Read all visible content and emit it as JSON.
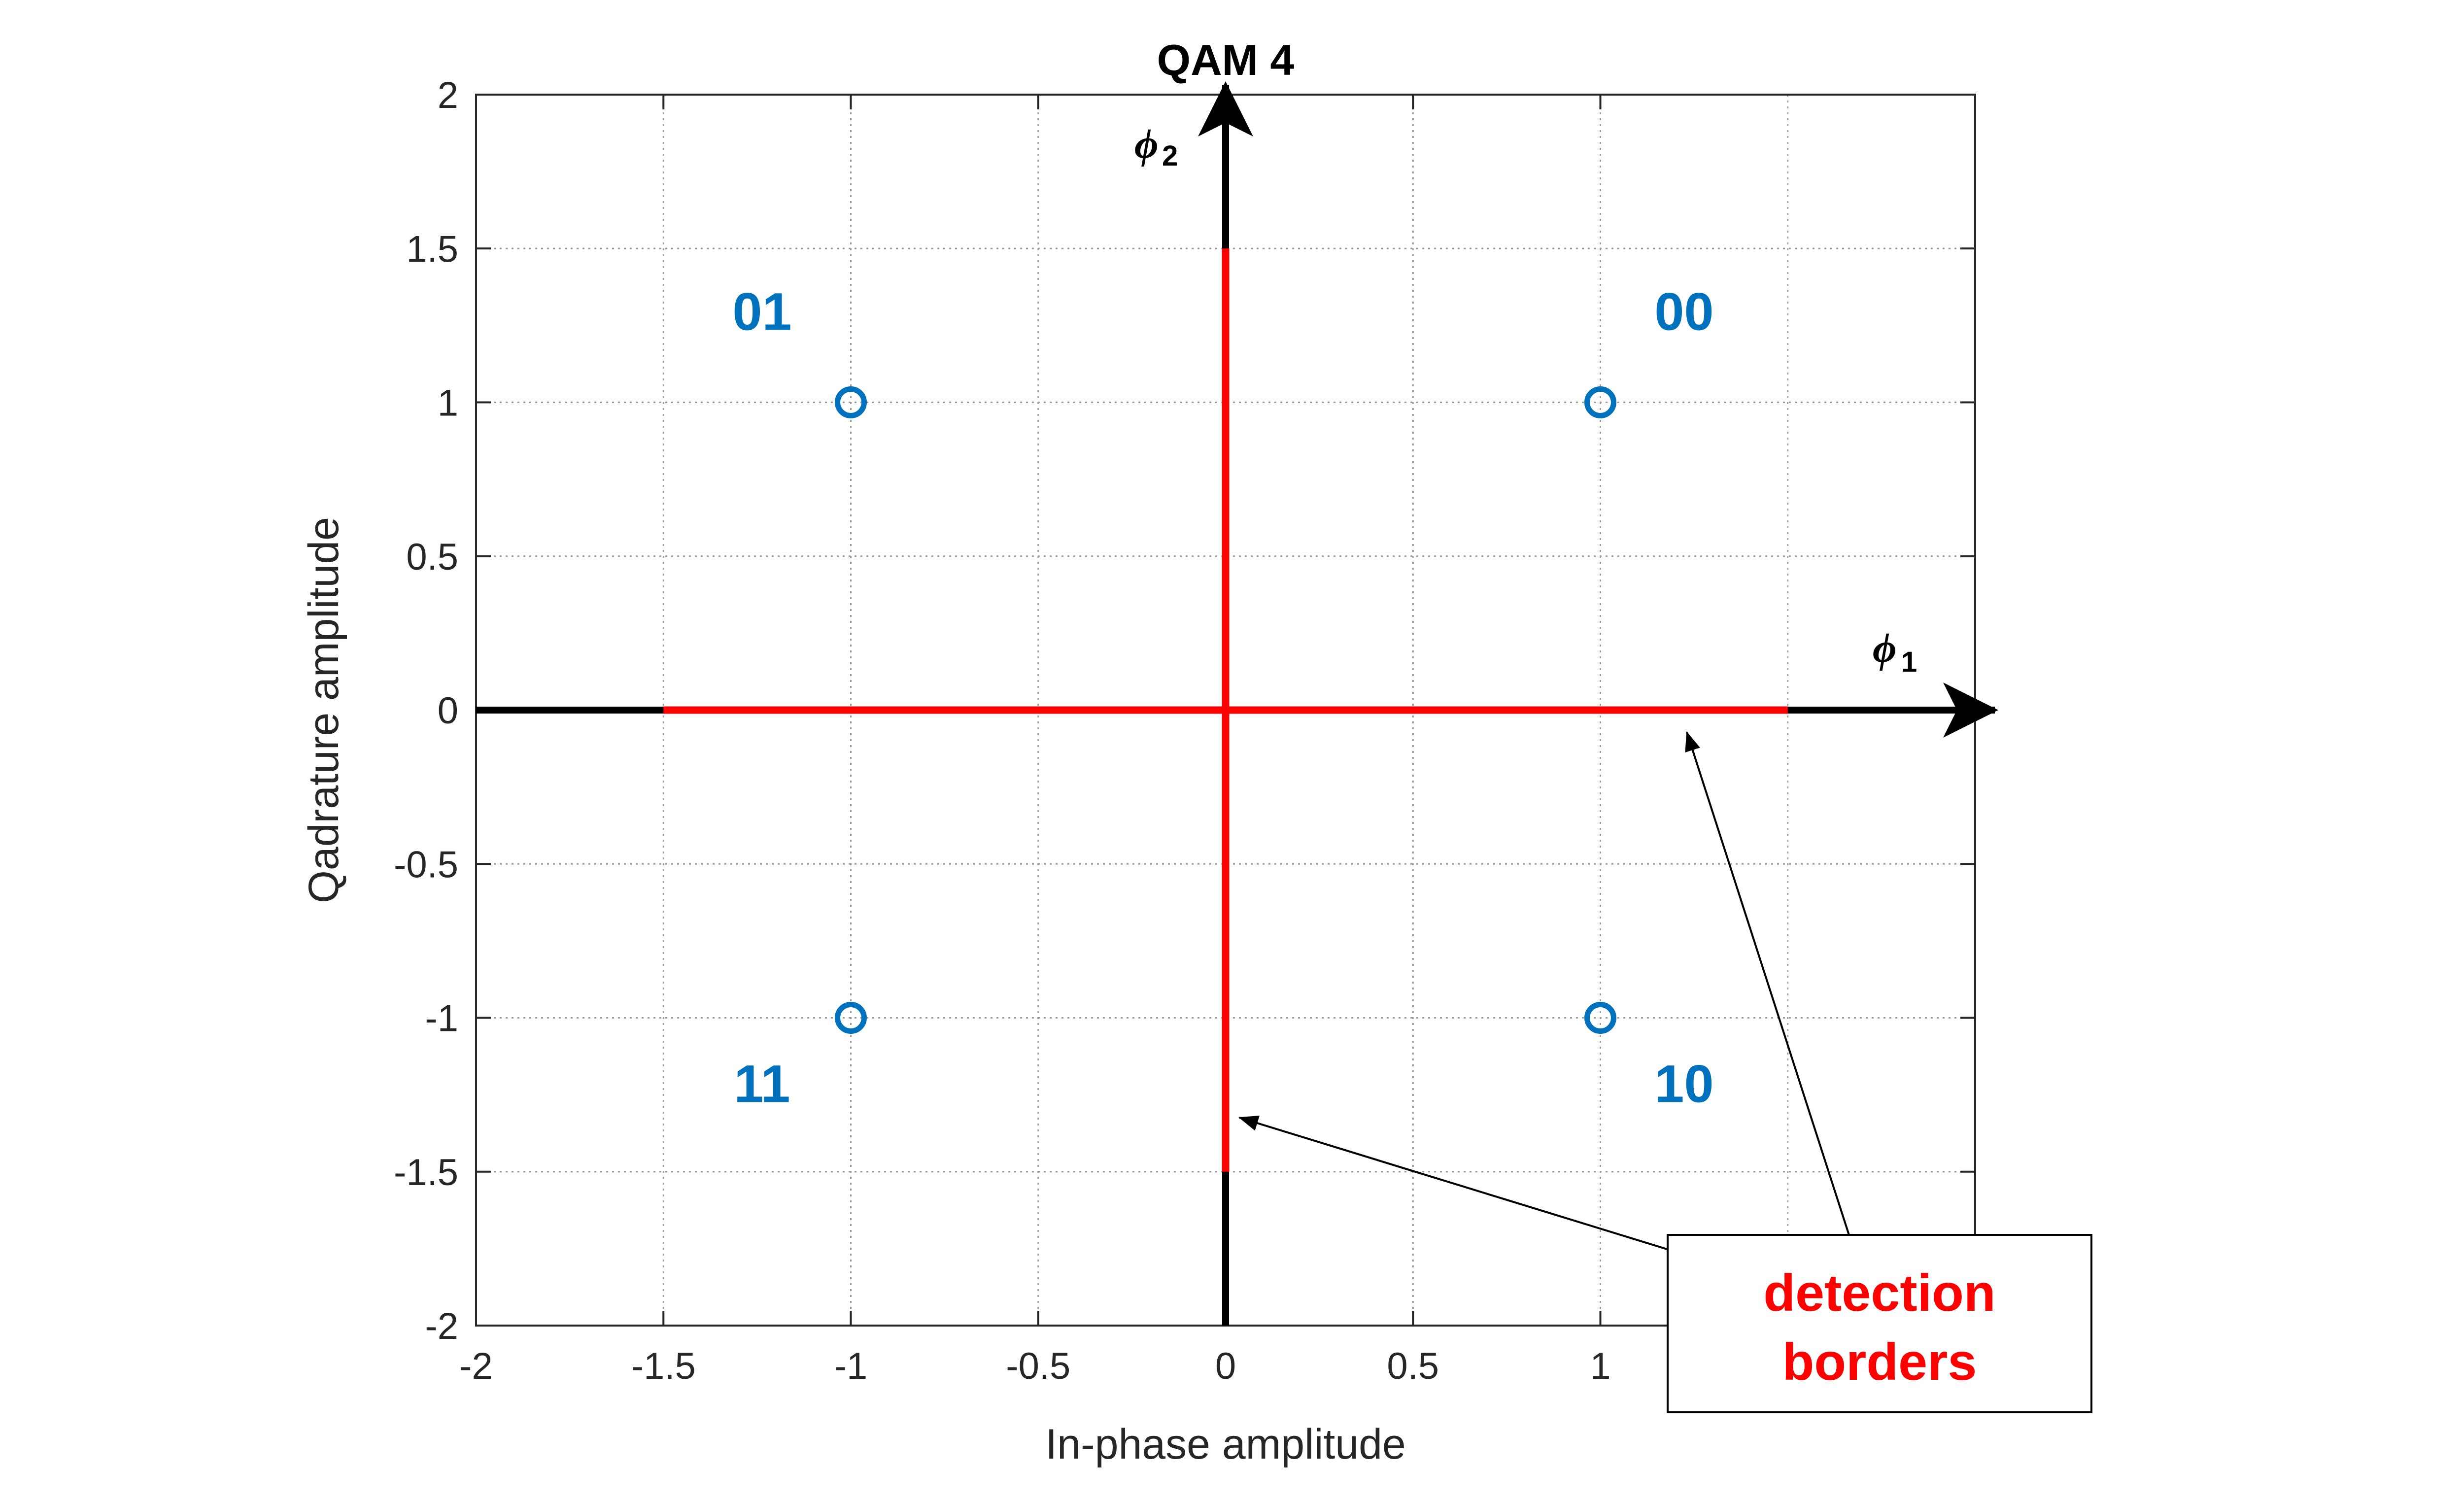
{
  "chart_data": {
    "type": "scatter",
    "title": "QAM 4",
    "xlabel": "In-phase amplitude",
    "ylabel": "Qadrature amplitude",
    "xlim": [
      -2,
      2
    ],
    "ylim": [
      -2,
      2
    ],
    "xticks": [
      "-2",
      "-1.5",
      "-1",
      "-0.5",
      "0",
      "0.5",
      "1"
    ],
    "xtick_values": [
      -2,
      -1.5,
      -1,
      -0.5,
      0,
      0.5,
      1
    ],
    "yticks": [
      "2",
      "1.5",
      "1",
      "0.5",
      "0",
      "-0.5",
      "-1",
      "-1.5",
      "-2"
    ],
    "ytick_values": [
      2,
      1.5,
      1,
      0.5,
      0,
      -0.5,
      -1,
      -1.5,
      -2
    ],
    "grid": true,
    "grid_step": 0.5,
    "points": [
      {
        "x": -1,
        "y": 1,
        "label": "01"
      },
      {
        "x": 1,
        "y": 1,
        "label": "00"
      },
      {
        "x": -1,
        "y": -1,
        "label": "11"
      },
      {
        "x": 1,
        "y": -1,
        "label": "10"
      }
    ],
    "basis_axes": {
      "phi1": {
        "symbol": "ϕ",
        "subscript": "1"
      },
      "phi2": {
        "symbol": "ϕ",
        "subscript": "2"
      }
    },
    "detection_borders": {
      "horizontal": {
        "y": 0,
        "x_from": -1.5,
        "x_to": 1.5
      },
      "vertical": {
        "x": 0,
        "y_from": -1.5,
        "y_to": 1.5
      }
    },
    "annotation": {
      "lines": [
        "detection",
        "borders"
      ]
    },
    "colors": {
      "points": "#0072BD",
      "borders": "#FF0000",
      "axes": "#000000",
      "grid": "#9a9a9a",
      "frame": "#262626",
      "callout_text": "#FF0000"
    }
  }
}
